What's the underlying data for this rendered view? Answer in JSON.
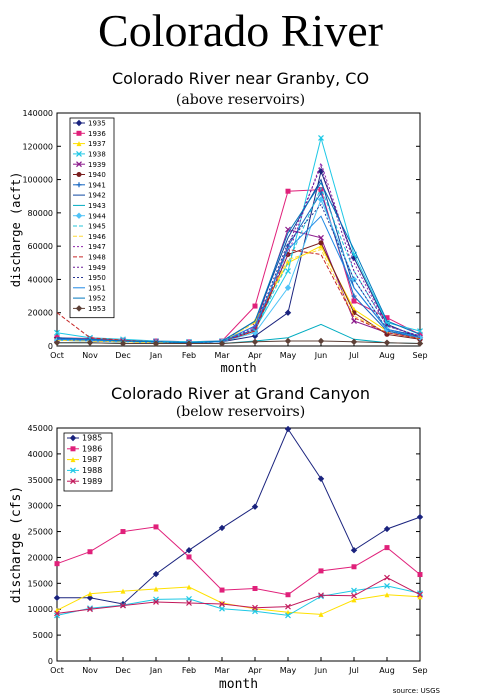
{
  "page": {
    "title": "Colorado River",
    "source": "source: USGS"
  },
  "chart_data": [
    {
      "type": "line",
      "title": "Colorado River near Granby, CO",
      "subtitle": "(above reservoirs)",
      "xlabel": "month",
      "ylabel": "discharge (acft)",
      "categories": [
        "Oct",
        "Nov",
        "Dec",
        "Jan",
        "Feb",
        "Mar",
        "Apr",
        "May",
        "Jun",
        "Jul",
        "Aug",
        "Sep"
      ],
      "ylim": [
        0,
        140000
      ],
      "yticks": [
        0,
        20000,
        40000,
        60000,
        80000,
        100000,
        120000,
        140000
      ],
      "legend_position": "top-left",
      "series": [
        {
          "name": "1935",
          "color": "#1a237e",
          "marker": "diamond",
          "dash": "",
          "values": [
            5000,
            4000,
            3000,
            2500,
            2000,
            2500,
            6000,
            20000,
            105000,
            53000,
            13000,
            5000
          ]
        },
        {
          "name": "1936",
          "color": "#e0207a",
          "marker": "square",
          "dash": "",
          "values": [
            5000,
            4500,
            3500,
            3000,
            2500,
            3000,
            24000,
            93000,
            94000,
            27000,
            17000,
            7000
          ]
        },
        {
          "name": "1937",
          "color": "#ffe000",
          "marker": "triangle",
          "dash": "",
          "values": [
            3500,
            3000,
            2500,
            2000,
            2000,
            2500,
            15000,
            50000,
            60000,
            22000,
            9000,
            5000
          ]
        },
        {
          "name": "1938",
          "color": "#1ec8e6",
          "marker": "x",
          "dash": "",
          "values": [
            8000,
            5000,
            4000,
            3000,
            2500,
            3000,
            10000,
            45000,
            125000,
            55000,
            14000,
            9000
          ]
        },
        {
          "name": "1939",
          "color": "#8b1a8b",
          "marker": "x",
          "dash": "",
          "values": [
            4000,
            3500,
            3000,
            2500,
            2000,
            2500,
            12000,
            70000,
            65000,
            15000,
            8000,
            5000
          ]
        },
        {
          "name": "1940",
          "color": "#7a1f1f",
          "marker": "circle",
          "dash": "",
          "values": [
            4000,
            3000,
            2500,
            2000,
            2000,
            2500,
            9000,
            55000,
            62000,
            20000,
            7000,
            4000
          ]
        },
        {
          "name": "1941",
          "color": "#1565c0",
          "marker": "plus",
          "dash": "",
          "values": [
            3500,
            3000,
            2500,
            2000,
            2000,
            2500,
            10000,
            60000,
            92000,
            30000,
            9000,
            5000
          ]
        },
        {
          "name": "1942",
          "color": "#0d47a1",
          "marker": "none",
          "dash": "",
          "values": [
            4500,
            4000,
            3000,
            2500,
            2000,
            2500,
            15000,
            65000,
            100000,
            35000,
            10000,
            6000
          ]
        },
        {
          "name": "1943",
          "color": "#00acc1",
          "marker": "none",
          "dash": "",
          "values": [
            2000,
            2000,
            1500,
            1500,
            1500,
            1500,
            3000,
            5000,
            13000,
            4000,
            2000,
            1500
          ]
        },
        {
          "name": "1944",
          "color": "#4fc3f7",
          "marker": "diamond",
          "dash": "",
          "values": [
            3500,
            3000,
            2500,
            2000,
            2000,
            2500,
            8000,
            35000,
            88000,
            40000,
            10000,
            5000
          ]
        },
        {
          "name": "1945",
          "color": "#26c6da",
          "marker": "none",
          "dash": "4,2",
          "values": [
            4000,
            3500,
            3000,
            2500,
            2000,
            2500,
            10000,
            50000,
            95000,
            45000,
            12000,
            6000
          ]
        },
        {
          "name": "1946",
          "color": "#fdd835",
          "marker": "none",
          "dash": "4,2",
          "values": [
            3500,
            3000,
            2500,
            2000,
            2000,
            2500,
            14000,
            52000,
            58000,
            18000,
            8000,
            4500
          ]
        },
        {
          "name": "1947",
          "color": "#8e24aa",
          "marker": "none",
          "dash": "2,2",
          "values": [
            4000,
            3500,
            3000,
            2500,
            2000,
            2500,
            11000,
            55000,
            110000,
            50000,
            12000,
            6000
          ]
        },
        {
          "name": "1948",
          "color": "#c62828",
          "marker": "none",
          "dash": "4,2",
          "values": [
            20000,
            5000,
            3500,
            2500,
            2000,
            2500,
            9000,
            58000,
            55000,
            17000,
            8000,
            4500
          ]
        },
        {
          "name": "1949",
          "color": "#6a1b9a",
          "marker": "none",
          "dash": "2,2",
          "values": [
            4500,
            4000,
            3000,
            2500,
            2000,
            2500,
            10000,
            60000,
            108000,
            45000,
            12000,
            6000
          ]
        },
        {
          "name": "1950",
          "color": "#283593",
          "marker": "none",
          "dash": "2,2",
          "values": [
            4000,
            3500,
            3000,
            2500,
            2000,
            2500,
            12000,
            62000,
            85000,
            40000,
            10000,
            5000
          ]
        },
        {
          "name": "1951",
          "color": "#1e88e5",
          "marker": "none",
          "dash": "",
          "values": [
            4000,
            3500,
            3000,
            2500,
            2000,
            2500,
            12000,
            58000,
            78000,
            35000,
            10000,
            5000
          ]
        },
        {
          "name": "1952",
          "color": "#0277bd",
          "marker": "none",
          "dash": "",
          "values": [
            5000,
            4000,
            3000,
            2500,
            2000,
            3000,
            15000,
            68000,
            98000,
            58000,
            15000,
            7000
          ]
        },
        {
          "name": "1953",
          "color": "#5d4037",
          "marker": "diamond",
          "dash": "",
          "values": [
            2000,
            2000,
            1500,
            1500,
            1500,
            1500,
            2500,
            3000,
            3000,
            2500,
            2000,
            1500
          ]
        }
      ]
    },
    {
      "type": "line",
      "title": "Colorado River at Grand Canyon",
      "subtitle": "(below reservoirs)",
      "xlabel": "month",
      "ylabel": "discharge (cfs)",
      "categories": [
        "Oct",
        "Nov",
        "Dec",
        "Jan",
        "Feb",
        "Mar",
        "Apr",
        "May",
        "Jun",
        "Jul",
        "Aug",
        "Sep"
      ],
      "ylim": [
        0,
        45000
      ],
      "yticks": [
        0,
        5000,
        10000,
        15000,
        20000,
        25000,
        30000,
        35000,
        40000,
        45000
      ],
      "legend_position": "top-left",
      "series": [
        {
          "name": "1985",
          "color": "#1a237e",
          "marker": "diamond",
          "dash": "",
          "values": [
            12200,
            12200,
            11000,
            16800,
            21400,
            25700,
            29800,
            44800,
            35200,
            21400,
            25500,
            27800
          ]
        },
        {
          "name": "1986",
          "color": "#e0207a",
          "marker": "square",
          "dash": "",
          "values": [
            18800,
            21100,
            25000,
            25900,
            20100,
            13700,
            14000,
            12800,
            17400,
            18200,
            21900,
            16700
          ]
        },
        {
          "name": "1987",
          "color": "#ffe000",
          "marker": "triangle",
          "dash": "",
          "values": [
            9800,
            13000,
            13500,
            13900,
            14300,
            11200,
            10100,
            9400,
            9000,
            11800,
            12800,
            12400
          ]
        },
        {
          "name": "1988",
          "color": "#1ec8e6",
          "marker": "x",
          "dash": "",
          "values": [
            8800,
            10200,
            10800,
            11900,
            12000,
            10100,
            9600,
            8800,
            12500,
            13600,
            14500,
            13100
          ]
        },
        {
          "name": "1989",
          "color": "#c2185b",
          "marker": "x",
          "dash": "",
          "values": [
            9200,
            10000,
            10700,
            11400,
            11200,
            11000,
            10300,
            10500,
            12700,
            12600,
            16100,
            12800
          ]
        }
      ]
    }
  ]
}
